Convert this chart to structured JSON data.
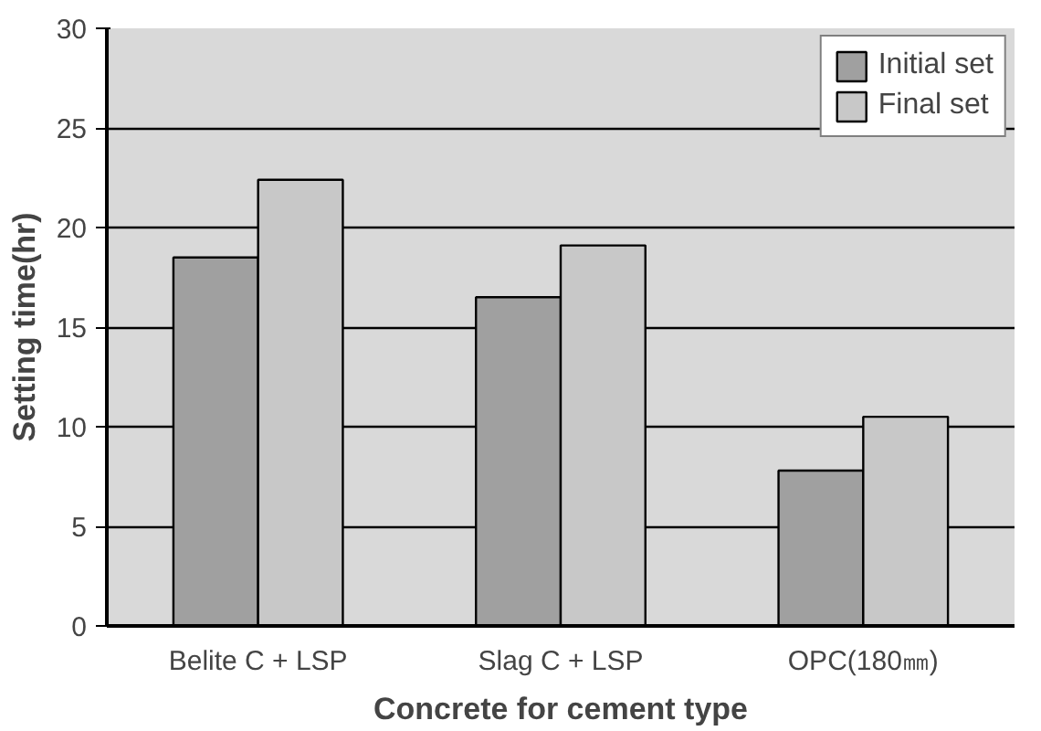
{
  "chart_data": {
    "type": "bar",
    "xlabel": "Concrete for cement type",
    "ylabel": "Setting time(hr)",
    "categories": [
      "Belite C + LSP",
      "Slag C + LSP",
      "OPC(180㎜)"
    ],
    "series": [
      {
        "name": "Initial set",
        "color": "#a0a0a0",
        "values": [
          18.5,
          16.5,
          7.8
        ]
      },
      {
        "name": "Final set",
        "color": "#c8c8c8",
        "values": [
          22.4,
          19.1,
          10.5
        ]
      }
    ],
    "ylim": [
      0,
      30
    ],
    "yticks": [
      0,
      5,
      10,
      15,
      20,
      25,
      30
    ],
    "grid": "y",
    "legend": "top right"
  }
}
